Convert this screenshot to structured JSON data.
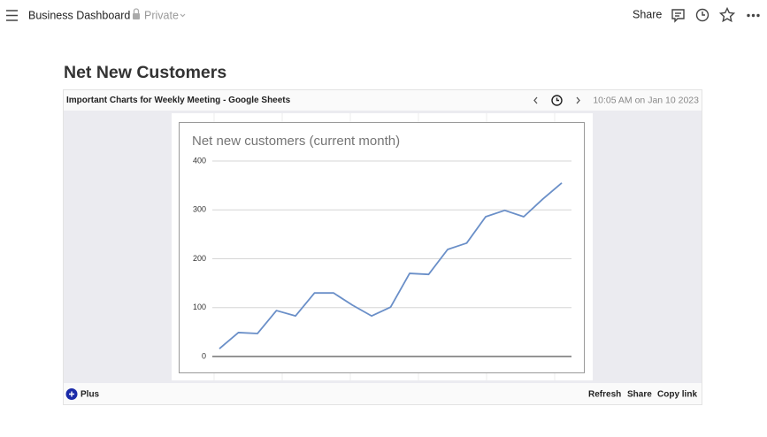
{
  "header": {
    "title": "Business Dashboard",
    "visibility": "Private",
    "share": "Share"
  },
  "page": {
    "heading": "Net New Customers"
  },
  "embed": {
    "title": "Important Charts for Weekly Meeting - Google Sheets",
    "timestamp": "10:05 AM on Jan 10 2023",
    "badge": "Plus",
    "actions": [
      "Refresh",
      "Share",
      "Copy link"
    ]
  },
  "chart_data": {
    "type": "line",
    "title": "Net new customers (current month)",
    "series": [
      {
        "color": "#6a8fc8",
        "values": [
          16,
          49,
          47,
          94,
          83,
          130,
          130,
          105,
          83,
          101,
          170,
          168,
          219,
          232,
          286,
          299,
          286,
          322,
          355
        ]
      }
    ],
    "ylim": [
      0,
      400
    ],
    "yticks": [
      0,
      100,
      200,
      300,
      400
    ],
    "grid": true
  }
}
